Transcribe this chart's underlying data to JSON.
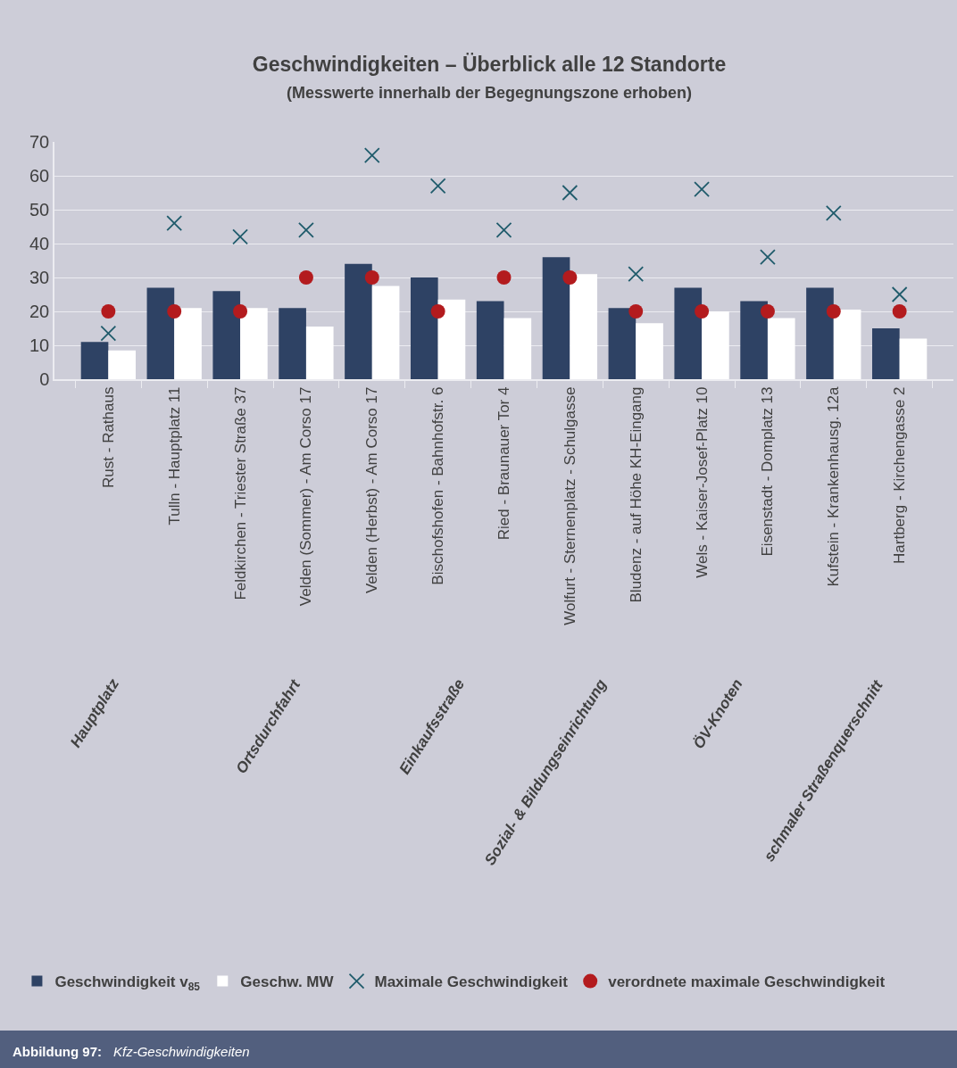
{
  "chart_data": {
    "type": "bar",
    "title": "Geschwindigkeiten – Überblick alle 12 Standorte",
    "subtitle": "(Messwerte innerhalb der Begegnungszone erhoben)",
    "categories": [
      "Rust - Rathaus",
      "Tulln - Hauptplatz 11",
      "Feldkirchen - Triester Straße 37",
      "Velden (Sommer) - Am Corso 17",
      "Velden (Herbst) - Am Corso 17",
      "Bischofshofen - Bahnhofstr. 6",
      "Ried - Braunauer Tor 4",
      "Wolfurt - Sternenplatz - Schulgasse",
      "Bludenz - auf Höhe KH-Eingang",
      "Wels - Kaiser-Josef-Platz 10",
      "Eisenstadt - Domplatz 13",
      "Kufstein - Krankenhausg. 12a",
      "Hartberg - Kirchengasse 2"
    ],
    "series": [
      {
        "name": "Geschwindigkeit v$_{85}$",
        "color": "#2e4264",
        "values": [
          11,
          27,
          26,
          21,
          34,
          30,
          23,
          36,
          21,
          27,
          23,
          27,
          15
        ]
      },
      {
        "name": "Geschw. MW",
        "color": "#ffffff",
        "values": [
          8.5,
          21,
          21,
          15.5,
          27.5,
          23.5,
          18,
          31,
          16.5,
          20,
          18,
          20.5,
          12
        ]
      },
      {
        "name": "Maximale Geschwindigkeit",
        "type": "scatter",
        "marker": "cross",
        "color": "#1f5b6b",
        "values": [
          13.5,
          46,
          42,
          44,
          66,
          57,
          44,
          55,
          31,
          56,
          36,
          49,
          25
        ]
      },
      {
        "name": "verordnete maximale Geschwindigkeit",
        "type": "scatter",
        "marker": "circle",
        "color": "#b31b1e",
        "values": [
          20,
          20,
          20,
          30,
          30,
          20,
          30,
          30,
          20,
          20,
          20,
          20,
          20
        ]
      }
    ],
    "ylim": [
      0,
      70
    ],
    "yticks": [
      0,
      10,
      20,
      30,
      40,
      50,
      60,
      70
    ],
    "grid": "y",
    "legend": "bottom",
    "annotations": [
      "Hauptplatz",
      "Ortsdurchfahrt",
      "Einkaufsstraße",
      "Sozial- & Bildungseinrichtung",
      "ÖV-Knoten",
      "schmaler Straßenquerschnitt",
      "Abbildung 97:",
      "Kfz-Geschwindigkeiten"
    ]
  }
}
